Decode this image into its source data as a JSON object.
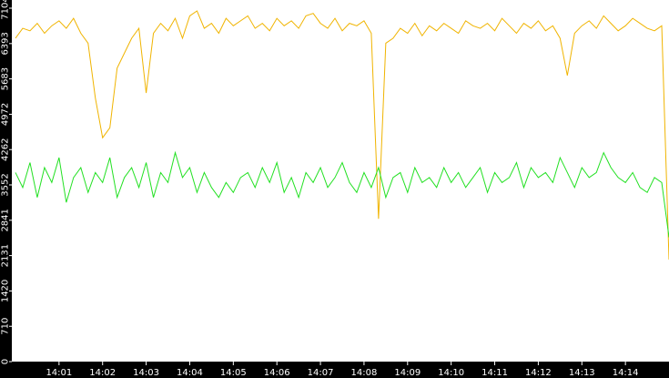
{
  "chart_data": {
    "type": "line",
    "x": [
      "14:00:00",
      "14:00:10",
      "14:00:20",
      "14:00:30",
      "14:00:40",
      "14:00:50",
      "14:01:00",
      "14:01:10",
      "14:01:20",
      "14:01:30",
      "14:01:40",
      "14:01:50",
      "14:02:00",
      "14:02:10",
      "14:02:20",
      "14:02:30",
      "14:02:40",
      "14:02:50",
      "14:03:00",
      "14:03:10",
      "14:03:20",
      "14:03:30",
      "14:03:40",
      "14:03:50",
      "14:04:00",
      "14:04:10",
      "14:04:20",
      "14:04:30",
      "14:04:40",
      "14:04:50",
      "14:05:00",
      "14:05:10",
      "14:05:20",
      "14:05:30",
      "14:05:40",
      "14:05:50",
      "14:06:00",
      "14:06:10",
      "14:06:20",
      "14:06:30",
      "14:06:40",
      "14:06:50",
      "14:07:00",
      "14:07:10",
      "14:07:20",
      "14:07:30",
      "14:07:40",
      "14:07:50",
      "14:08:00",
      "14:08:10",
      "14:08:20",
      "14:08:30",
      "14:08:40",
      "14:08:50",
      "14:09:00",
      "14:09:10",
      "14:09:20",
      "14:09:30",
      "14:09:40",
      "14:09:50",
      "14:10:00",
      "14:10:10",
      "14:10:20",
      "14:10:30",
      "14:10:40",
      "14:10:50",
      "14:11:00",
      "14:11:10",
      "14:11:20",
      "14:11:30",
      "14:11:40",
      "14:11:50",
      "14:12:00",
      "14:12:10",
      "14:12:20",
      "14:12:30",
      "14:12:40",
      "14:12:50",
      "14:13:00",
      "14:13:10",
      "14:13:20",
      "14:13:30",
      "14:13:40",
      "14:13:50",
      "14:14:00",
      "14:14:10",
      "14:14:20",
      "14:14:30",
      "14:14:40",
      "14:14:50",
      "14:15:00"
    ],
    "series": [
      {
        "color": "#f0b400",
        "values": [
          6500,
          6700,
          6650,
          6800,
          6600,
          6750,
          6850,
          6700,
          6900,
          6600,
          6400,
          5300,
          4500,
          4700,
          5900,
          6200,
          6500,
          6700,
          5400,
          6600,
          6800,
          6650,
          6900,
          6500,
          6950,
          7050,
          6700,
          6800,
          6600,
          6900,
          6750,
          6850,
          6950,
          6700,
          6800,
          6650,
          6900,
          6750,
          6850,
          6700,
          6950,
          7000,
          6800,
          6700,
          6900,
          6650,
          6800,
          6750,
          6850,
          6600,
          2870,
          6400,
          6500,
          6700,
          6600,
          6800,
          6550,
          6750,
          6650,
          6800,
          6700,
          6600,
          6850,
          6750,
          6700,
          6800,
          6650,
          6900,
          6750,
          6600,
          6800,
          6700,
          6850,
          6650,
          6750,
          6500,
          5750,
          6600,
          6750,
          6850,
          6700,
          6950,
          6800,
          6650,
          6750,
          6900,
          6800,
          6700,
          6650,
          6750,
          2050
        ]
      },
      {
        "color": "#22e022",
        "values": [
          3800,
          3500,
          4000,
          3300,
          3900,
          3600,
          4100,
          3200,
          3700,
          3900,
          3400,
          3800,
          3600,
          4100,
          3300,
          3700,
          3900,
          3500,
          4000,
          3300,
          3800,
          3600,
          4200,
          3700,
          3900,
          3400,
          3800,
          3500,
          3300,
          3600,
          3400,
          3700,
          3800,
          3500,
          3900,
          3600,
          4000,
          3400,
          3700,
          3300,
          3800,
          3600,
          3900,
          3500,
          3700,
          4000,
          3600,
          3400,
          3800,
          3500,
          3900,
          3300,
          3700,
          3800,
          3400,
          3900,
          3600,
          3700,
          3500,
          3900,
          3600,
          3800,
          3500,
          3700,
          3900,
          3400,
          3800,
          3600,
          3700,
          4000,
          3500,
          3900,
          3700,
          3800,
          3600,
          4100,
          3800,
          3500,
          3900,
          3700,
          3800,
          4200,
          3900,
          3700,
          3600,
          3800,
          3500,
          3400,
          3700,
          3600,
          2500
        ]
      }
    ],
    "xlim": [
      "13:59:55",
      "14:15:00"
    ],
    "xticks": [
      "14:01",
      "14:02",
      "14:03",
      "14:04",
      "14:05",
      "14:06",
      "14:07",
      "14:08",
      "14:09",
      "14:10",
      "14:11",
      "14:12",
      "14:13",
      "14:14"
    ],
    "ylim": [
      0,
      7104
    ],
    "yticks": [
      0,
      710,
      1420,
      2131,
      2841,
      3552,
      4262,
      4972,
      5683,
      6393,
      7104
    ]
  }
}
